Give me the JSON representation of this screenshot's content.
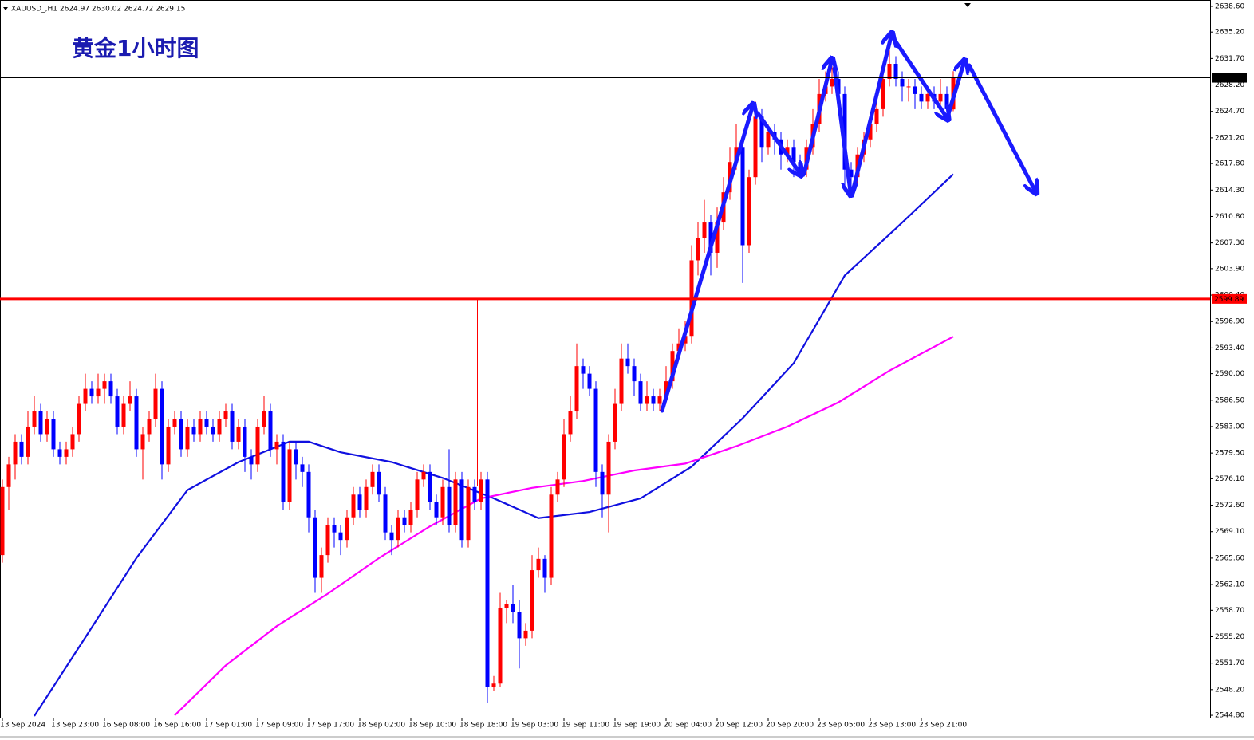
{
  "chart_data": {
    "type": "candlestick",
    "title": "黄金1小时图",
    "header": "XAUUSD_,H1  2624.97 2630.02 2624.72 2629.15",
    "up_color": "#ff0000",
    "down_color": "#0000ff",
    "xlim": [
      -0.375,
      189.25
    ],
    "ylim": [
      2544.49,
      2639.44
    ],
    "xticks": [
      {
        "value": 0,
        "label": "13 Sep 2024"
      },
      {
        "value": 8,
        "label": "13 Sep 23:00"
      },
      {
        "value": 16,
        "label": "16 Sep 08:00"
      },
      {
        "value": 24,
        "label": "16 Sep 16:00"
      },
      {
        "value": 32,
        "label": "17 Sep 01:00"
      },
      {
        "value": 40,
        "label": "17 Sep 09:00"
      },
      {
        "value": 48,
        "label": "17 Sep 17:00"
      },
      {
        "value": 56,
        "label": "18 Sep 02:00"
      },
      {
        "value": 64,
        "label": "18 Sep 10:00"
      },
      {
        "value": 72,
        "label": "18 Sep 18:00"
      },
      {
        "value": 80,
        "label": "19 Sep 03:00"
      },
      {
        "value": 88,
        "label": "19 Sep 11:00"
      },
      {
        "value": 96,
        "label": "19 Sep 19:00"
      },
      {
        "value": 104,
        "label": "20 Sep 04:00"
      },
      {
        "value": 112,
        "label": "20 Sep 12:00"
      },
      {
        "value": 120,
        "label": "20 Sep 20:00"
      },
      {
        "value": 128,
        "label": "23 Sep 05:00"
      },
      {
        "value": 136,
        "label": "23 Sep 13:00"
      },
      {
        "value": 144,
        "label": "23 Sep 21:00"
      }
    ],
    "yticks": [
      {
        "value": 2638.6,
        "label": "2638.60"
      },
      {
        "value": 2635.2,
        "label": "2635.20"
      },
      {
        "value": 2631.7,
        "label": "2631.70"
      },
      {
        "value": 2628.2,
        "label": "2628.20"
      },
      {
        "value": 2624.7,
        "label": "2624.70"
      },
      {
        "value": 2621.2,
        "label": "2621.20"
      },
      {
        "value": 2617.8,
        "label": "2617.80"
      },
      {
        "value": 2614.3,
        "label": "2614.30"
      },
      {
        "value": 2610.8,
        "label": "2610.80"
      },
      {
        "value": 2607.3,
        "label": "2607.30"
      },
      {
        "value": 2603.9,
        "label": "2603.90"
      },
      {
        "value": 2600.4,
        "label": "2600.40"
      },
      {
        "value": 2596.9,
        "label": "2596.90"
      },
      {
        "value": 2593.4,
        "label": "2593.40"
      },
      {
        "value": 2590,
        "label": "2590.00"
      },
      {
        "value": 2586.5,
        "label": "2586.50"
      },
      {
        "value": 2583,
        "label": "2583.00"
      },
      {
        "value": 2579.5,
        "label": "2579.50"
      },
      {
        "value": 2576.1,
        "label": "2576.10"
      },
      {
        "value": 2572.6,
        "label": "2572.60"
      },
      {
        "value": 2569.1,
        "label": "2569.10"
      },
      {
        "value": 2565.6,
        "label": "2565.60"
      },
      {
        "value": 2562.1,
        "label": "2562.10"
      },
      {
        "value": 2558.7,
        "label": "2558.70"
      },
      {
        "value": 2555.2,
        "label": "2555.20"
      },
      {
        "value": 2551.7,
        "label": "2551.70"
      },
      {
        "value": 2548.2,
        "label": "2548.20"
      },
      {
        "value": 2544.8,
        "label": "2544.80"
      }
    ],
    "levels": [
      {
        "price": 2629.15,
        "color": "#000000",
        "width": 1
      },
      {
        "price": 2599.89,
        "color": "#ff0000",
        "width": 3
      }
    ],
    "ohlc": [
      [
        2566,
        2576,
        2565,
        2575
      ],
      [
        2575,
        2579,
        2572,
        2578
      ],
      [
        2578,
        2582,
        2576,
        2581
      ],
      [
        2581,
        2582,
        2578,
        2579
      ],
      [
        2579,
        2585,
        2578,
        2583
      ],
      [
        2583,
        2587,
        2582,
        2585
      ],
      [
        2585,
        2586,
        2581,
        2582
      ],
      [
        2582,
        2585,
        2581,
        2584
      ],
      [
        2584,
        2585,
        2579,
        2580
      ],
      [
        2580,
        2581,
        2578,
        2579
      ],
      [
        2579,
        2581,
        2578,
        2580
      ],
      [
        2580,
        2583,
        2579,
        2582
      ],
      [
        2582,
        2587,
        2581,
        2586
      ],
      [
        2586,
        2590,
        2585,
        2588
      ],
      [
        2588,
        2589,
        2586,
        2587
      ],
      [
        2587,
        2590,
        2586,
        2588
      ],
      [
        2588,
        2590,
        2586,
        2589
      ],
      [
        2589,
        2590,
        2586,
        2587
      ],
      [
        2587,
        2588,
        2582,
        2583
      ],
      [
        2583,
        2587,
        2582,
        2586
      ],
      [
        2586,
        2589,
        2585,
        2587
      ],
      [
        2587,
        2588,
        2579,
        2580
      ],
      [
        2580,
        2583,
        2576,
        2582
      ],
      [
        2582,
        2585,
        2581,
        2584
      ],
      [
        2584,
        2590,
        2583,
        2588
      ],
      [
        2588,
        2589,
        2576,
        2578
      ],
      [
        2578,
        2584,
        2577,
        2583
      ],
      [
        2583,
        2585,
        2582,
        2584
      ],
      [
        2584,
        2585,
        2579,
        2580
      ],
      [
        2580,
        2584,
        2579,
        2583
      ],
      [
        2583,
        2584,
        2581,
        2582
      ],
      [
        2582,
        2585,
        2581,
        2584
      ],
      [
        2584,
        2585,
        2582,
        2583
      ],
      [
        2583,
        2584,
        2581,
        2582
      ],
      [
        2582,
        2585,
        2581,
        2584
      ],
      [
        2584,
        2586,
        2583,
        2585
      ],
      [
        2585,
        2586,
        2580,
        2581
      ],
      [
        2581,
        2584,
        2580,
        2583
      ],
      [
        2583,
        2584,
        2577,
        2579
      ],
      [
        2579,
        2580,
        2576,
        2578
      ],
      [
        2578,
        2584,
        2577,
        2583
      ],
      [
        2583,
        2587,
        2582,
        2585
      ],
      [
        2585,
        2586,
        2579,
        2580
      ],
      [
        2580,
        2582,
        2578,
        2581
      ],
      [
        2581,
        2582,
        2572,
        2573
      ],
      [
        2573,
        2581,
        2572,
        2580
      ],
      [
        2580,
        2581,
        2576,
        2578
      ],
      [
        2578,
        2579,
        2575,
        2577
      ],
      [
        2577,
        2578,
        2569,
        2571
      ],
      [
        2571,
        2572,
        2561,
        2563
      ],
      [
        2563,
        2567,
        2561,
        2566
      ],
      [
        2566,
        2571,
        2565,
        2570
      ],
      [
        2570,
        2571,
        2567,
        2569
      ],
      [
        2569,
        2570,
        2566,
        2568
      ],
      [
        2568,
        2572,
        2567,
        2571
      ],
      [
        2571,
        2575,
        2570,
        2574
      ],
      [
        2574,
        2575,
        2571,
        2572
      ],
      [
        2572,
        2576,
        2571,
        2575
      ],
      [
        2575,
        2578,
        2574,
        2577
      ],
      [
        2577,
        2578,
        2573,
        2574
      ],
      [
        2574,
        2575,
        2568,
        2569
      ],
      [
        2569,
        2570,
        2566,
        2568
      ],
      [
        2568,
        2572,
        2567,
        2571
      ],
      [
        2571,
        2572,
        2569,
        2570
      ],
      [
        2570,
        2573,
        2569,
        2572
      ],
      [
        2572,
        2577,
        2571,
        2576
      ],
      [
        2576,
        2578,
        2575,
        2577
      ],
      [
        2577,
        2578,
        2572,
        2573
      ],
      [
        2573,
        2574,
        2570,
        2571
      ],
      [
        2571,
        2576,
        2570,
        2575
      ],
      [
        2575,
        2580,
        2569,
        2570
      ],
      [
        2570,
        2577,
        2569,
        2576
      ],
      [
        2576,
        2577,
        2567,
        2568
      ],
      [
        2568,
        2576,
        2567,
        2575
      ],
      [
        2575,
        2576,
        2572,
        2573
      ],
      [
        2573,
        2577,
        2572,
        2576
      ],
      [
        2576,
        2577,
        2546.5,
        2548.5
      ],
      [
        2548.5,
        2550,
        2548,
        2549
      ],
      [
        2549,
        2561,
        2548.5,
        2559
      ],
      [
        2559,
        2560,
        2557,
        2559.5
      ],
      [
        2559.5,
        2562,
        2557,
        2558.5
      ],
      [
        2558.5,
        2560,
        2551,
        2555
      ],
      [
        2555,
        2557,
        2554,
        2556
      ],
      [
        2556,
        2566,
        2555,
        2564
      ],
      [
        2564,
        2567,
        2563,
        2565.5
      ],
      [
        2565.5,
        2566,
        2561,
        2563
      ],
      [
        2563,
        2575,
        2562,
        2574
      ],
      [
        2574,
        2577,
        2573,
        2576
      ],
      [
        2576,
        2584,
        2575,
        2582
      ],
      [
        2582,
        2587,
        2581,
        2585
      ],
      [
        2585,
        2594,
        2584,
        2591
      ],
      [
        2591,
        2592,
        2588,
        2590
      ],
      [
        2590,
        2591,
        2587,
        2588
      ],
      [
        2588,
        2589,
        2575,
        2577
      ],
      [
        2577,
        2578,
        2571,
        2574
      ],
      [
        2574,
        2582,
        2569,
        2581
      ],
      [
        2581,
        2588,
        2580,
        2586
      ],
      [
        2586,
        2594,
        2585,
        2592
      ],
      [
        2592,
        2594,
        2590,
        2591
      ],
      [
        2591,
        2592,
        2587,
        2589
      ],
      [
        2589,
        2590,
        2585,
        2586
      ],
      [
        2586,
        2589,
        2585,
        2587
      ],
      [
        2587,
        2588,
        2585,
        2586
      ],
      [
        2586,
        2588,
        2585,
        2587
      ],
      [
        2587,
        2591,
        2586,
        2589
      ],
      [
        2589,
        2594,
        2588,
        2593
      ],
      [
        2593,
        2596,
        2592,
        2594
      ],
      [
        2594,
        2597,
        2593,
        2595
      ],
      [
        2595,
        2607,
        2594,
        2605
      ],
      [
        2605,
        2610,
        2603,
        2608
      ],
      [
        2608,
        2613,
        2606,
        2610
      ],
      [
        2610,
        2611,
        2603,
        2606
      ],
      [
        2606,
        2612,
        2604,
        2610
      ],
      [
        2610,
        2616,
        2609,
        2614
      ],
      [
        2614,
        2620,
        2613,
        2618
      ],
      [
        2618,
        2623,
        2617,
        2620
      ],
      [
        2620,
        2621,
        2602,
        2607
      ],
      [
        2607,
        2617,
        2606,
        2616
      ],
      [
        2616,
        2626,
        2615,
        2624
      ],
      [
        2624,
        2625,
        2618,
        2620
      ],
      [
        2620,
        2623,
        2619,
        2622
      ],
      [
        2622,
        2623,
        2619,
        2621
      ],
      [
        2621,
        2622,
        2617,
        2619
      ],
      [
        2619,
        2621,
        2618,
        2620
      ],
      [
        2620,
        2621,
        2616,
        2618
      ],
      [
        2618,
        2619,
        2616,
        2617
      ],
      [
        2617,
        2621,
        2616,
        2620
      ],
      [
        2620,
        2625,
        2619,
        2623
      ],
      [
        2623,
        2629,
        2622,
        2627
      ],
      [
        2627,
        2630,
        2626,
        2628
      ],
      [
        2628,
        2631,
        2627,
        2629
      ],
      [
        2629,
        2630,
        2626,
        2627
      ],
      [
        2627,
        2628,
        2614,
        2617
      ],
      [
        2617,
        2618,
        2615,
        2616
      ],
      [
        2616,
        2620,
        2615,
        2619
      ],
      [
        2619,
        2622,
        2618,
        2621
      ],
      [
        2621,
        2624,
        2620,
        2623
      ],
      [
        2623,
        2627,
        2622,
        2625
      ],
      [
        2625,
        2631,
        2624,
        2629
      ],
      [
        2629,
        2633,
        2628,
        2631
      ],
      [
        2631,
        2632,
        2628,
        2629
      ],
      [
        2629,
        2630,
        2626,
        2628
      ],
      [
        2628,
        2629,
        2626,
        2628
      ],
      [
        2628,
        2629,
        2625,
        2627
      ],
      [
        2627,
        2628,
        2625,
        2626
      ],
      [
        2626,
        2628,
        2625,
        2627
      ],
      [
        2627,
        2628,
        2625,
        2626
      ],
      [
        2626,
        2629,
        2625,
        2627
      ],
      [
        2627,
        2628,
        2624,
        2625
      ],
      [
        2624.97,
        2630.02,
        2624.72,
        2629.15
      ]
    ],
    "series": [
      {
        "color": "#1010e0",
        "x": [
          5,
          13,
          21,
          29,
          37,
          45,
          48,
          53,
          61,
          69,
          77,
          84,
          92,
          100,
          108,
          116,
          124,
          132,
          140,
          149
        ],
        "values": [
          2544.7,
          2555.1,
          2565.6,
          2574.6,
          2578.3,
          2581.0,
          2581.0,
          2579.6,
          2578.3,
          2576.2,
          2573.5,
          2570.9,
          2571.7,
          2573.5,
          2577.7,
          2584.1,
          2591.4,
          2603.0,
          2609.2,
          2616.4
        ]
      },
      {
        "color": "#ff00ff",
        "x": [
          27,
          35,
          43,
          51,
          59,
          67,
          75,
          83,
          91,
          99,
          107,
          115,
          123,
          131,
          139,
          149
        ],
        "values": [
          2544.8,
          2551.4,
          2556.6,
          2560.9,
          2565.6,
          2569.8,
          2573.5,
          2574.9,
          2575.8,
          2577.2,
          2578.1,
          2580.4,
          2583.0,
          2586.2,
          2590.4,
          2594.9
        ]
      }
    ]
  }
}
